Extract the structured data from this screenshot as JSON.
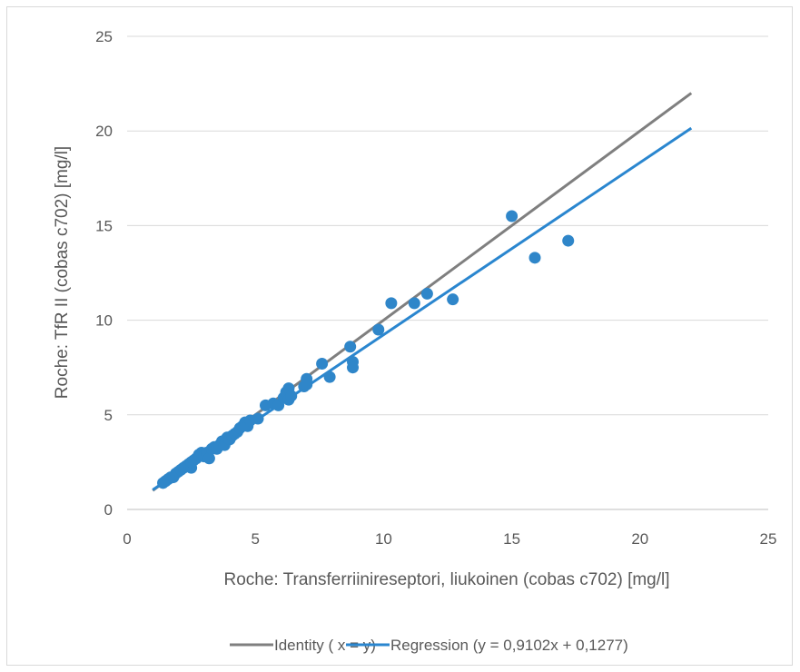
{
  "chart_data": {
    "type": "scatter",
    "title": "",
    "xlabel": "Roche: Transferriinireseptori, liukoinen (cobas c702) [mg/l]",
    "ylabel": "Roche: TfR II  (cobas c702) [mg/l]",
    "xlim": [
      0,
      25
    ],
    "ylim": [
      0,
      25
    ],
    "xticks": [
      "0",
      "5",
      "10",
      "15",
      "20",
      "25"
    ],
    "yticks": [
      "0",
      "5",
      "10",
      "15",
      "20",
      "25"
    ],
    "grid": "horizontal",
    "legend_position": "bottom",
    "colors": {
      "points": "#2f86c9",
      "identity": "#7f7f7f",
      "regression": "#2a86cf",
      "grid": "#d9d9d9",
      "axis": "#bfbfbf"
    },
    "lines": [
      {
        "name": "Identity ( x = y)",
        "x": [
          1.0,
          22.0
        ],
        "y": [
          1.0,
          22.0
        ]
      },
      {
        "name": "Regression (y = 0,9102x + 0,1277)",
        "x": [
          1.0,
          22.0
        ],
        "y": [
          1.04,
          20.15
        ]
      }
    ],
    "points": {
      "x": [
        1.4,
        1.5,
        1.6,
        1.7,
        1.8,
        1.9,
        2.0,
        2.1,
        2.2,
        2.3,
        2.4,
        2.5,
        2.5,
        2.6,
        2.7,
        2.8,
        2.9,
        3.0,
        3.1,
        3.2,
        3.3,
        3.4,
        3.5,
        3.6,
        3.7,
        3.8,
        3.9,
        4.0,
        4.1,
        4.2,
        4.3,
        4.4,
        4.5,
        4.6,
        4.7,
        4.8,
        5.1,
        5.4,
        5.7,
        5.9,
        6.1,
        6.2,
        6.3,
        6.3,
        6.4,
        6.9,
        7.0,
        7.0,
        7.6,
        7.9,
        8.7,
        8.8,
        8.8,
        9.8,
        10.3,
        11.2,
        11.7,
        12.7,
        15.0,
        15.9,
        17.2
      ],
      "y": [
        1.4,
        1.5,
        1.6,
        1.7,
        1.7,
        1.9,
        2.0,
        2.1,
        2.2,
        2.3,
        2.4,
        2.2,
        2.5,
        2.6,
        2.7,
        2.9,
        3.0,
        2.8,
        3.0,
        2.7,
        3.2,
        3.3,
        3.2,
        3.4,
        3.6,
        3.4,
        3.8,
        3.7,
        3.9,
        4.0,
        4.1,
        4.3,
        4.4,
        4.6,
        4.4,
        4.7,
        4.8,
        5.5,
        5.6,
        5.5,
        5.9,
        6.2,
        6.4,
        5.8,
        6.0,
        6.5,
        6.9,
        6.6,
        7.7,
        7.0,
        8.6,
        7.8,
        7.5,
        9.5,
        10.9,
        10.9,
        11.4,
        11.1,
        15.5,
        13.3,
        14.2
      ]
    },
    "legend": [
      "Identity ( x = y)",
      "Regression (y = 0,9102x + 0,1277)"
    ]
  }
}
